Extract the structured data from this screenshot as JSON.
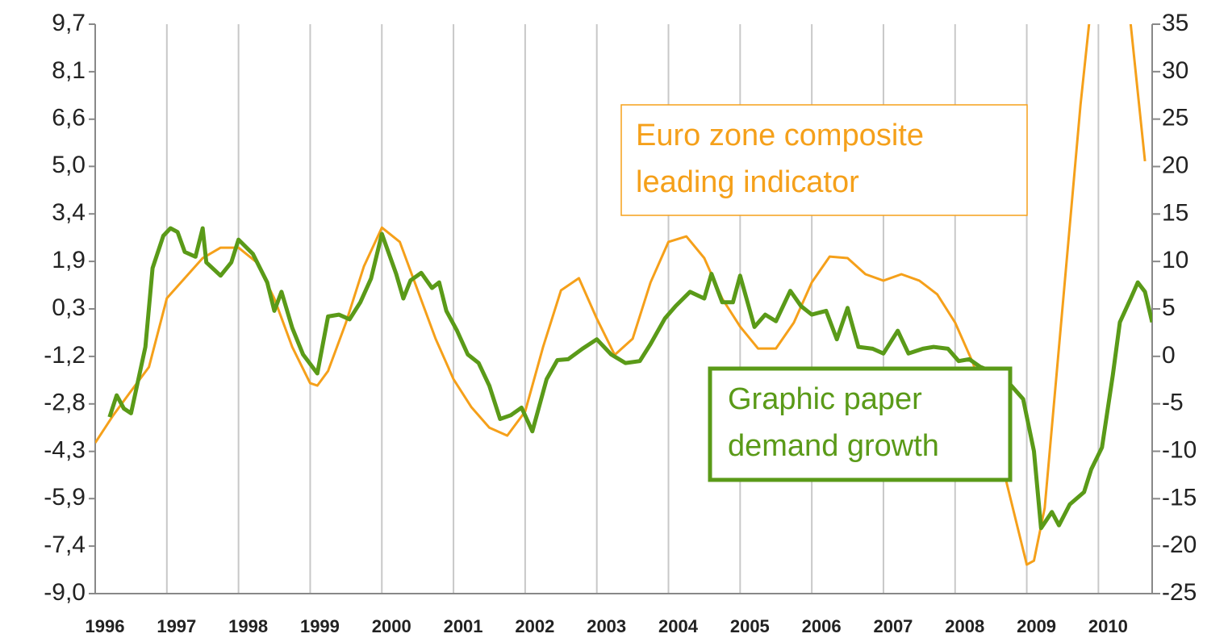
{
  "chart_data": {
    "type": "line",
    "xlim": [
      1996,
      2010.75
    ],
    "xticks": [
      1996,
      1997,
      1998,
      1999,
      2000,
      2001,
      2002,
      2003,
      2004,
      2005,
      2006,
      2007,
      2008,
      2009,
      2010
    ],
    "ylim": [
      -9.0,
      9.7
    ],
    "yticks": [
      {
        "value": 9.7,
        "label": "9,7"
      },
      {
        "value": 8.14,
        "label": "8,1"
      },
      {
        "value": 6.58,
        "label": "6,6"
      },
      {
        "value": 5.03,
        "label": "5,0"
      },
      {
        "value": 3.47,
        "label": "3,4"
      },
      {
        "value": 1.91,
        "label": "1,9"
      },
      {
        "value": 0.35,
        "label": "0,3"
      },
      {
        "value": -1.21,
        "label": "-1,2"
      },
      {
        "value": -2.77,
        "label": "-2,8"
      },
      {
        "value": -4.33,
        "label": "-4,3"
      },
      {
        "value": -5.88,
        "label": "-5,9"
      },
      {
        "value": -7.44,
        "label": "-7,4"
      },
      {
        "value": -9.0,
        "label": "-9,0"
      }
    ],
    "y2lim": [
      -25,
      35
    ],
    "y2ticks": [
      35,
      30,
      25,
      20,
      15,
      10,
      5,
      0,
      -5,
      -10,
      -15,
      -20,
      -25
    ],
    "grid": true,
    "series": [
      {
        "name": "Euro zone composite leading indicator",
        "color": "#f5a01a",
        "axis": "y",
        "x": [
          1996.0,
          1996.25,
          1996.5,
          1996.75,
          1997.0,
          1997.25,
          1997.5,
          1997.75,
          1998.0,
          1998.25,
          1998.5,
          1998.75,
          1999.0,
          1999.1,
          1999.25,
          1999.5,
          1999.75,
          2000.0,
          2000.25,
          2000.5,
          2000.75,
          2001.0,
          2001.25,
          2001.5,
          2001.75,
          2002.0,
          2002.25,
          2002.5,
          2002.75,
          2003.0,
          2003.25,
          2003.5,
          2003.75,
          2004.0,
          2004.25,
          2004.5,
          2004.75,
          2005.0,
          2005.25,
          2005.5,
          2005.75,
          2006.0,
          2006.25,
          2006.5,
          2006.75,
          2007.0,
          2007.25,
          2007.5,
          2007.75,
          2008.0,
          2008.25,
          2008.5,
          2008.75,
          2009.0,
          2009.1,
          2009.25,
          2009.5,
          2009.75,
          2009.87,
          2010.15,
          2010.45,
          2010.65
        ],
        "values": [
          -4.05,
          -3.15,
          -2.35,
          -1.56,
          0.7,
          1.36,
          2.02,
          2.36,
          2.36,
          1.89,
          0.69,
          -0.9,
          -2.09,
          -2.17,
          -1.69,
          -0.1,
          1.75,
          3.02,
          2.55,
          0.96,
          -0.63,
          -1.96,
          -2.88,
          -3.55,
          -3.81,
          -3.02,
          -0.9,
          0.96,
          1.36,
          0.03,
          -1.16,
          -0.63,
          1.22,
          2.55,
          2.73,
          2.02,
          0.69,
          -0.23,
          -0.95,
          -0.95,
          -0.1,
          1.22,
          2.07,
          2.02,
          1.49,
          1.28,
          1.49,
          1.28,
          0.83,
          -0.1,
          -1.43,
          -3.28,
          -5.66,
          -8.05,
          -7.92,
          -6.19,
          0.43,
          7.05,
          9.7,
          12,
          9.7,
          5.2
        ]
      },
      {
        "name": "Graphic paper demand growth",
        "color": "#5a9a18",
        "axis": "y2",
        "x": [
          1996.2,
          1996.3,
          1996.4,
          1996.5,
          1996.7,
          1996.8,
          1996.95,
          1997.05,
          1997.15,
          1997.25,
          1997.4,
          1997.5,
          1997.55,
          1997.75,
          1997.9,
          1998.0,
          1998.2,
          1998.4,
          1998.5,
          1998.6,
          1998.75,
          1998.9,
          1999.1,
          1999.25,
          1999.4,
          1999.55,
          1999.7,
          1999.85,
          2000.0,
          2000.2,
          2000.3,
          2000.4,
          2000.55,
          2000.7,
          2000.8,
          2000.9,
          2001.05,
          2001.2,
          2001.35,
          2001.5,
          2001.65,
          2001.8,
          2001.95,
          2002.1,
          2002.3,
          2002.45,
          2002.6,
          2002.8,
          2003.0,
          2003.2,
          2003.4,
          2003.6,
          2003.75,
          2003.95,
          2004.1,
          2004.3,
          2004.5,
          2004.6,
          2004.75,
          2004.9,
          2005.0,
          2005.2,
          2005.35,
          2005.5,
          2005.7,
          2005.85,
          2006.0,
          2006.2,
          2006.35,
          2006.5,
          2006.65,
          2006.85,
          2007.0,
          2007.2,
          2007.35,
          2007.55,
          2007.7,
          2007.9,
          2008.05,
          2008.2,
          2008.35,
          2008.55,
          2008.75,
          2008.95,
          2009.1,
          2009.2,
          2009.35,
          2009.45,
          2009.6,
          2009.8,
          2009.9,
          2010.05,
          2010.2,
          2010.3,
          2010.45,
          2010.55,
          2010.65,
          2010.75
        ],
        "values": [
          -6.4,
          -4.1,
          -5.5,
          -6.0,
          1.0,
          9.3,
          12.7,
          13.5,
          13.1,
          11.0,
          10.5,
          13.5,
          9.9,
          8.5,
          9.9,
          12.3,
          10.8,
          7.8,
          4.8,
          6.8,
          3.0,
          0.2,
          -1.8,
          4.2,
          4.4,
          3.9,
          5.7,
          8.2,
          12.9,
          8.7,
          6.1,
          8.0,
          8.8,
          7.2,
          7.8,
          4.8,
          2.7,
          0.2,
          -0.7,
          -3.1,
          -6.6,
          -6.2,
          -5.4,
          -7.9,
          -2.4,
          -0.4,
          -0.3,
          0.8,
          1.8,
          0.2,
          -0.7,
          -0.5,
          1.3,
          4.0,
          5.3,
          6.8,
          6.1,
          8.7,
          5.7,
          5.7,
          8.5,
          3.1,
          4.4,
          3.7,
          6.9,
          5.3,
          4.4,
          4.8,
          1.8,
          5.1,
          1.0,
          0.8,
          0.3,
          2.7,
          0.3,
          0.8,
          1.0,
          0.8,
          -0.5,
          -0.3,
          -1.1,
          -1.7,
          -2.8,
          -4.5,
          -10.0,
          -18.1,
          -16.4,
          -17.8,
          -15.6,
          -14.3,
          -11.9,
          -9.6,
          -2.0,
          3.6,
          6.1,
          7.8,
          6.8,
          3.6
        ]
      }
    ],
    "annotations": [
      {
        "lines": [
          "Euro zone composite",
          "leading indicator"
        ],
        "color": "#f5a01a"
      },
      {
        "lines": [
          "Graphic paper",
          "demand growth"
        ],
        "color": "#5a9a18"
      }
    ]
  }
}
